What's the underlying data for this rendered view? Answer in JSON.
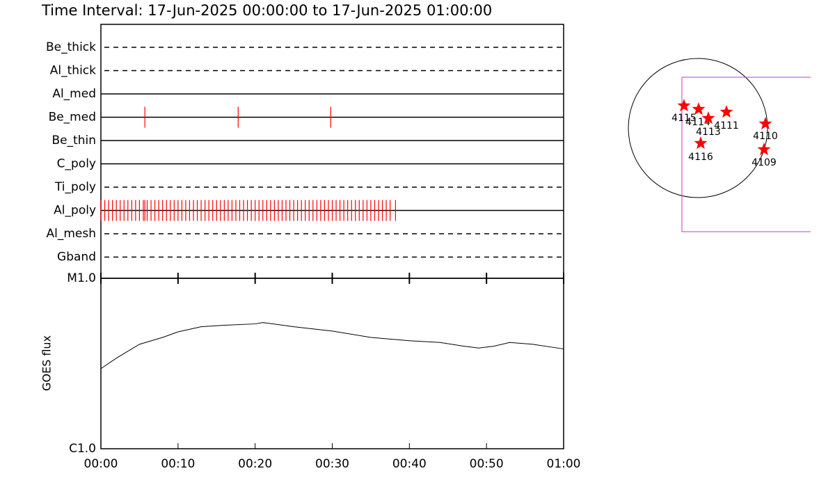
{
  "title": "Time Interval: 17-Jun-2025 00:00:00 to 17-Jun-2025 01:00:00",
  "chart_data": [
    {
      "type": "timeline",
      "categories": [
        "Be_thick",
        "Al_thick",
        "Al_med",
        "Be_med",
        "Be_thin",
        "C_poly",
        "Ti_poly",
        "Al_poly",
        "Al_mesh",
        "Gband"
      ],
      "line_styles": [
        "dashed",
        "dashed",
        "solid",
        "solid",
        "solid",
        "solid",
        "dashed",
        "solid",
        "dashed",
        "dashed"
      ],
      "xlim": [
        0,
        60
      ],
      "events": [
        {
          "name": "Be_med",
          "color": "#ff0000",
          "x": [
            5.7,
            17.8,
            29.8
          ]
        },
        {
          "name": "Al_poly",
          "color": "#ff0000",
          "x": [
            0,
            0.5,
            1,
            1.5,
            2,
            2.5,
            3,
            3.5,
            4,
            4.5,
            5,
            5.5,
            5.7,
            6,
            6.5,
            7,
            7.5,
            8,
            8.5,
            9,
            9.5,
            10,
            10.5,
            11,
            11.5,
            12,
            12.5,
            13,
            13.5,
            14,
            14.5,
            15,
            15.5,
            16,
            16.5,
            17,
            17.5,
            18,
            18.5,
            19,
            19.5,
            20,
            20.5,
            21,
            21.5,
            22,
            22.5,
            23,
            23.5,
            24,
            24.5,
            25,
            25.5,
            26,
            26.5,
            27,
            27.5,
            28,
            28.5,
            29,
            29.5,
            30,
            30.5,
            31,
            31.5,
            32,
            32.5,
            33,
            33.5,
            34,
            34.5,
            35,
            35.5,
            36,
            36.5,
            37,
            37.5,
            38.2
          ]
        }
      ]
    },
    {
      "type": "line",
      "y_label": "GOES flux",
      "ylog": true,
      "color": "#000000",
      "xlim": [
        0,
        60
      ],
      "xticks": [
        {
          "value": 0,
          "label": "00:00"
        },
        {
          "value": 10,
          "label": "00:10"
        },
        {
          "value": 20,
          "label": "00:20"
        },
        {
          "value": 30,
          "label": "00:30"
        },
        {
          "value": 40,
          "label": "00:40"
        },
        {
          "value": 50,
          "label": "00:50"
        },
        {
          "value": 60,
          "label": "01:00"
        }
      ],
      "ylim": [
        1e-06,
        1e-05
      ],
      "yticks": [
        {
          "value": 1e-06,
          "label": "C1.0"
        },
        {
          "value": 1e-05,
          "label": "M1.0"
        }
      ],
      "x": [
        0,
        2,
        5,
        8,
        10,
        13,
        16,
        20,
        21,
        25,
        30,
        35,
        40,
        44,
        47,
        49,
        51,
        53,
        56,
        60
      ],
      "values": [
        2.95e-06,
        3.4e-06,
        4.1e-06,
        4.5e-06,
        4.85e-06,
        5.2e-06,
        5.3e-06,
        5.4e-06,
        5.5e-06,
        5.2e-06,
        4.9e-06,
        4.5e-06,
        4.3e-06,
        4.2e-06,
        4e-06,
        3.9e-06,
        4e-06,
        4.2e-06,
        4.1e-06,
        3.85e-06
      ]
    },
    {
      "type": "map",
      "color": "#ff0000",
      "regions": [
        "4115",
        "4114",
        "4113",
        "4111",
        "4110",
        "4116",
        "4109"
      ]
    }
  ]
}
